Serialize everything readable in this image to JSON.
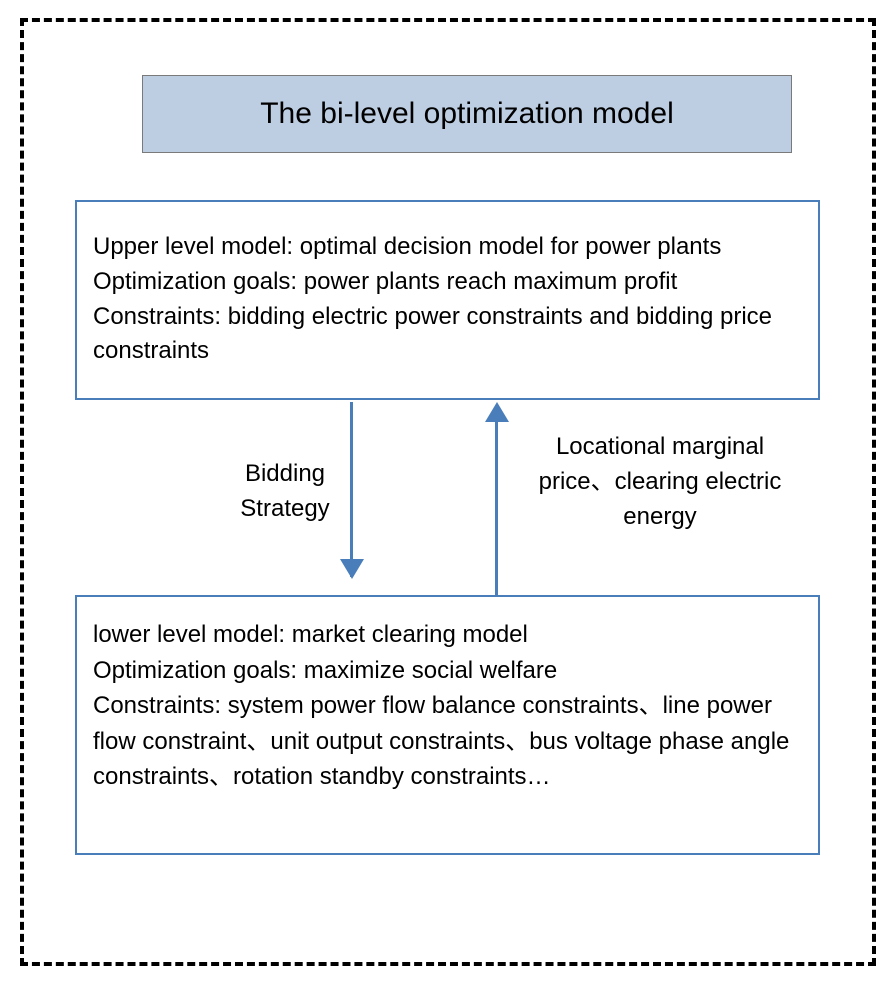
{
  "diagram": {
    "type": "flowchart",
    "background_color": "#ffffff",
    "outer_border": {
      "style": "dashed",
      "color": "#000000",
      "width": 4
    },
    "title": {
      "text": "The bi-level optimization model",
      "bg_color": "#bdcee2",
      "border_color": "#7a7a7a",
      "font_size": 30,
      "text_color": "#000000"
    },
    "upper_box": {
      "border_color": "#4a7ebb",
      "border_width": 2,
      "font_size": 24,
      "text_color": "#000000",
      "line1": "Upper level model: optimal decision model for power plants",
      "line2": "Optimization goals: power plants reach maximum profit",
      "line3": "Constraints: bidding electric power constraints and bidding price constraints"
    },
    "lower_box": {
      "border_color": "#4a7ebb",
      "border_width": 2,
      "font_size": 24,
      "text_color": "#000000",
      "line1": "lower level model: market clearing model",
      "line2": "Optimization goals: maximize social welfare",
      "line3": "Constraints: system power flow balance constraints、line power flow constraint、unit output constraints、bus voltage phase angle constraints、rotation standby constraints…"
    },
    "arrows": {
      "color": "#4a7ebb",
      "line_width": 3,
      "arrowhead_size": 20
    },
    "label_left": {
      "text": "Bidding Strategy",
      "font_size": 24,
      "text_color": "#000000"
    },
    "label_right": {
      "text": "Locational marginal price、clearing electric energy",
      "font_size": 24,
      "text_color": "#000000"
    }
  }
}
